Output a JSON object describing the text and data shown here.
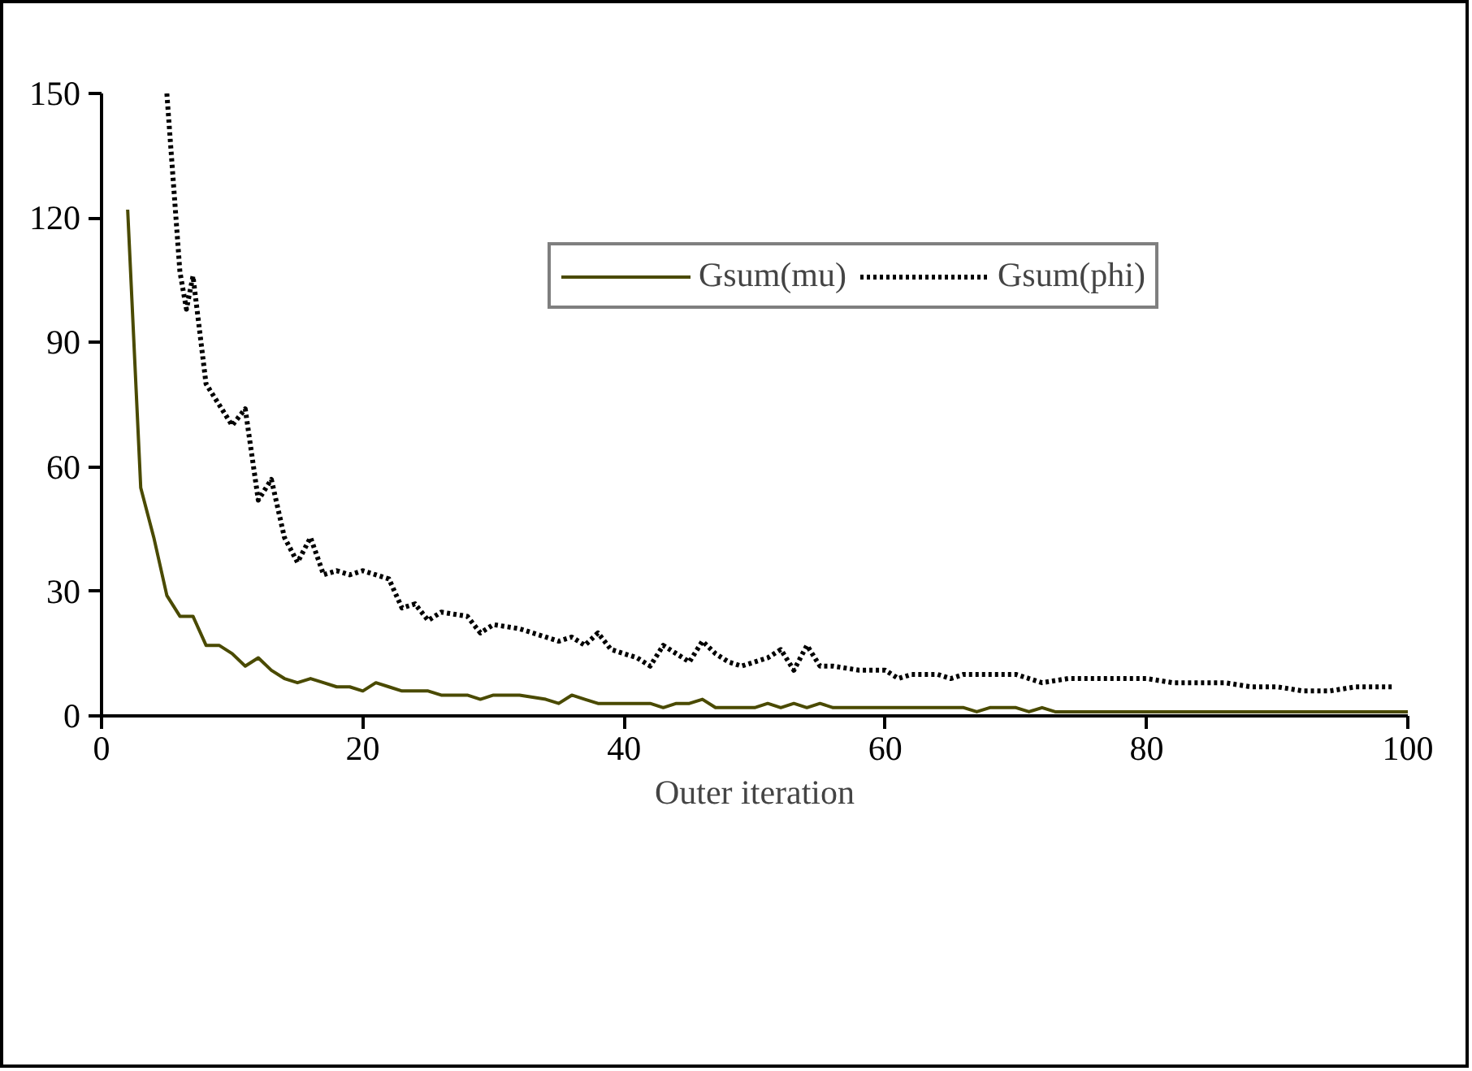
{
  "chart_data": {
    "type": "line",
    "xlabel": "Outer iteration",
    "xlim": [
      0,
      100
    ],
    "xticks": [
      0,
      20,
      40,
      60,
      80,
      100
    ],
    "ylim": [
      0,
      150
    ],
    "yticks": [
      0,
      30,
      60,
      90,
      120,
      150
    ],
    "grid": false,
    "legend": "top right",
    "marker": "none",
    "series": [
      {
        "name": "Gsum(mu)",
        "color": "#4a4a00",
        "line_style": "solid",
        "x": [
          2,
          3,
          4,
          5,
          6,
          7,
          8,
          9,
          10,
          11,
          12,
          13,
          14,
          15,
          16,
          17,
          18,
          19,
          20,
          21,
          22,
          23,
          24,
          25,
          26,
          28,
          29,
          30,
          32,
          34,
          35,
          36,
          37,
          38,
          42,
          43,
          44,
          45,
          46,
          47,
          50,
          51,
          52,
          53,
          54,
          55,
          56,
          66,
          67,
          68,
          70,
          71,
          72,
          73,
          100
        ],
        "values": [
          122,
          55,
          43,
          29,
          24,
          24,
          17,
          17,
          15,
          12,
          14,
          11,
          9,
          8,
          9,
          8,
          7,
          7,
          6,
          8,
          7,
          6,
          6,
          6,
          5,
          5,
          4,
          5,
          5,
          4,
          3,
          5,
          4,
          3,
          3,
          2,
          3,
          3,
          4,
          2,
          2,
          3,
          2,
          3,
          2,
          3,
          2,
          2,
          1,
          2,
          2,
          1,
          2,
          1,
          1
        ]
      },
      {
        "name": "Gsum(phi)",
        "color": "#000000",
        "line_style": "dotted",
        "x": [
          5,
          6,
          6.5,
          7,
          8,
          9,
          10,
          11,
          12,
          13,
          14,
          15,
          16,
          17,
          18,
          19,
          20,
          21,
          22,
          23,
          24,
          25,
          26,
          28,
          29,
          30,
          32,
          34,
          35,
          36,
          37,
          38,
          39,
          40,
          41,
          42,
          43,
          44,
          45,
          46,
          47,
          48,
          49,
          50,
          51,
          52,
          53,
          54,
          55,
          56,
          58,
          60,
          61,
          62,
          64,
          65,
          66,
          68,
          70,
          71,
          72,
          74,
          76,
          78,
          80,
          82,
          84,
          86,
          88,
          90,
          92,
          94,
          96,
          98,
          99
        ],
        "values": [
          150,
          107,
          98,
          106,
          80,
          75,
          70,
          74,
          52,
          57,
          43,
          37,
          43,
          34,
          35,
          34,
          35,
          34,
          33,
          26,
          27,
          23,
          25,
          24,
          20,
          22,
          21,
          19,
          18,
          19,
          17,
          20,
          16,
          15,
          14,
          12,
          17,
          15,
          13,
          18,
          15,
          13,
          12,
          13,
          14,
          16,
          11,
          17,
          12,
          12,
          11,
          11,
          9,
          10,
          10,
          9,
          10,
          10,
          10,
          9,
          8,
          9,
          9,
          9,
          9,
          8,
          8,
          8,
          7,
          7,
          6,
          6,
          7,
          7,
          7
        ]
      }
    ]
  }
}
